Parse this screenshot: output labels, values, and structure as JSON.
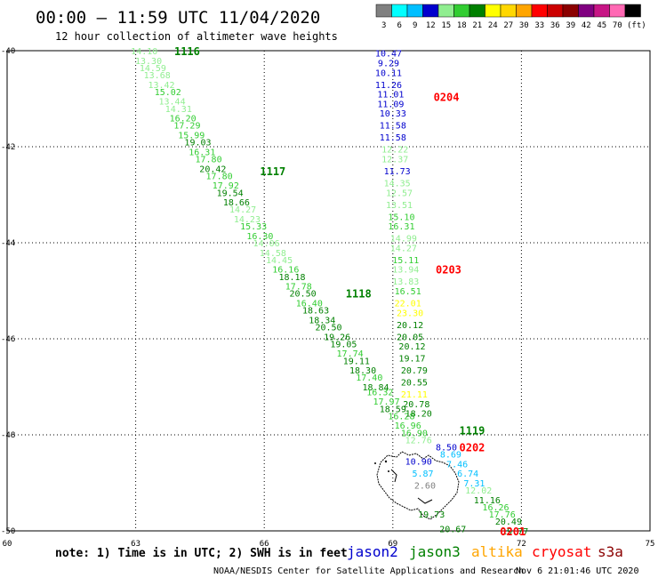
{
  "header": {
    "title": "00:00 – 11:59 UTC 11/04/2020",
    "subtitle": "12 hour collection of altimeter wave heights"
  },
  "legend": {
    "unit": "(ft)",
    "bins": [
      {
        "label": "3",
        "color": "#808080"
      },
      {
        "label": "6",
        "color": "#00ffff"
      },
      {
        "label": "9",
        "color": "#00bfff"
      },
      {
        "label": "12",
        "color": "#0000cd"
      },
      {
        "label": "15",
        "color": "#90ee90"
      },
      {
        "label": "18",
        "color": "#32cd32"
      },
      {
        "label": "21",
        "color": "#008000"
      },
      {
        "label": "24",
        "color": "#ffff00"
      },
      {
        "label": "27",
        "color": "#ffd700"
      },
      {
        "label": "30",
        "color": "#ffa500"
      },
      {
        "label": "33",
        "color": "#ff0000"
      },
      {
        "label": "36",
        "color": "#cc0000"
      },
      {
        "label": "39",
        "color": "#8b0000"
      },
      {
        "label": "42",
        "color": "#800080"
      },
      {
        "label": "45",
        "color": "#c71585"
      },
      {
        "label": "70",
        "color": "#ff69b4"
      },
      {
        "label": "",
        "color": "#000000"
      }
    ]
  },
  "footer": {
    "note": "note: 1) Time is in UTC; 2) SWH is in feet",
    "credit": "NOAA/NESDIS Center for Satellite Applications and Research",
    "timestamp": "Nov  6 21:01:46 UTC 2020",
    "satellites": [
      {
        "name": "jason2",
        "color": "#0000cd"
      },
      {
        "name": "jason3",
        "color": "#008000"
      },
      {
        "name": "altika",
        "color": "#ffa500"
      },
      {
        "name": "cryosat",
        "color": "#ff0000"
      },
      {
        "name": "s3a",
        "color": "#8b0000"
      }
    ]
  },
  "chart_data": {
    "type": "scatter",
    "xlabel": "",
    "ylabel": "",
    "xlim": [
      60,
      75
    ],
    "ylim": [
      -50,
      -40
    ],
    "x_ticks": [
      60,
      63,
      66,
      69,
      72,
      75
    ],
    "y_ticks": [
      -40,
      -42,
      -44,
      -46,
      -48,
      -50
    ],
    "grid": true,
    "tracks": [
      {
        "satellite": "jason3",
        "time_label": "1116",
        "time_label_at": [
          63.9,
          -40.0
        ],
        "points": [
          {
            "lon": 63.2,
            "lat": -40.0,
            "swh": "14.10",
            "color": "#90ee90"
          },
          {
            "lon": 63.3,
            "lat": -40.2,
            "swh": "13.30",
            "color": "#90ee90"
          },
          {
            "lon": 63.4,
            "lat": -40.35,
            "swh": "14.59",
            "color": "#90ee90"
          },
          {
            "lon": 63.5,
            "lat": -40.5,
            "swh": "13.68",
            "color": "#90ee90"
          },
          {
            "lon": 63.6,
            "lat": -40.7,
            "swh": "13.42",
            "color": "#90ee90"
          },
          {
            "lon": 63.75,
            "lat": -40.85,
            "swh": "15.02",
            "color": "#32cd32"
          },
          {
            "lon": 63.85,
            "lat": -41.05,
            "swh": "13.44",
            "color": "#90ee90"
          },
          {
            "lon": 64.0,
            "lat": -41.2,
            "swh": "14.31",
            "color": "#90ee90"
          },
          {
            "lon": 64.1,
            "lat": -41.4,
            "swh": "16.20",
            "color": "#32cd32"
          },
          {
            "lon": 64.2,
            "lat": -41.55,
            "swh": "17.29",
            "color": "#32cd32"
          },
          {
            "lon": 64.3,
            "lat": -41.75,
            "swh": "15.99",
            "color": "#32cd32"
          },
          {
            "lon": 64.45,
            "lat": -41.9,
            "swh": "19.03",
            "color": "#008000"
          },
          {
            "lon": 64.55,
            "lat": -42.1,
            "swh": "16.31",
            "color": "#32cd32"
          },
          {
            "lon": 64.7,
            "lat": -42.25,
            "swh": "17.80",
            "color": "#32cd32"
          },
          {
            "lon": 64.8,
            "lat": -42.45,
            "swh": "20.42",
            "color": "#008000"
          },
          {
            "lon": 64.95,
            "lat": -42.6,
            "swh": "17.80",
            "color": "#32cd32"
          },
          {
            "lon": 65.1,
            "lat": -42.8,
            "swh": "17.92",
            "color": "#32cd32"
          },
          {
            "lon": 65.2,
            "lat": -42.95,
            "swh": "19.54",
            "color": "#008000"
          },
          {
            "lon": 65.35,
            "lat": -43.15,
            "swh": "18.66",
            "color": "#008000"
          },
          {
            "lon": 65.5,
            "lat": -43.3,
            "swh": "14.27",
            "color": "#90ee90"
          },
          {
            "lon": 65.6,
            "lat": -43.5,
            "swh": "14.23",
            "color": "#90ee90"
          },
          {
            "lon": 65.75,
            "lat": -43.65,
            "swh": "15.33",
            "color": "#32cd32"
          },
          {
            "lon": 65.9,
            "lat": -43.85,
            "swh": "16.30",
            "color": "#32cd32"
          },
          {
            "lon": 66.05,
            "lat": -44.0,
            "swh": "14.06",
            "color": "#90ee90"
          },
          {
            "lon": 66.2,
            "lat": -44.2,
            "swh": "14.58",
            "color": "#90ee90"
          },
          {
            "lon": 66.35,
            "lat": -44.35,
            "swh": "14.45",
            "color": "#90ee90"
          },
          {
            "lon": 66.5,
            "lat": -44.55,
            "swh": "16.16",
            "color": "#32cd32"
          },
          {
            "lon": 66.65,
            "lat": -44.7,
            "swh": "18.18",
            "color": "#008000"
          },
          {
            "lon": 66.8,
            "lat": -44.9,
            "swh": "17.78",
            "color": "#32cd32"
          },
          {
            "lon": 66.9,
            "lat": -45.05,
            "swh": "20.50",
            "color": "#008000"
          },
          {
            "lon": 67.05,
            "lat": -45.25,
            "swh": "16.40",
            "color": "#32cd32"
          },
          {
            "lon": 67.2,
            "lat": -45.4,
            "swh": "18.63",
            "color": "#008000"
          },
          {
            "lon": 67.35,
            "lat": -45.6,
            "swh": "18.34",
            "color": "#008000"
          },
          {
            "lon": 67.5,
            "lat": -45.75,
            "swh": "20.50",
            "color": "#008000"
          },
          {
            "lon": 67.7,
            "lat": -45.95,
            "swh": "19.26",
            "color": "#008000"
          },
          {
            "lon": 67.85,
            "lat": -46.1,
            "swh": "19.05",
            "color": "#008000"
          },
          {
            "lon": 68.0,
            "lat": -46.3,
            "swh": "17.74",
            "color": "#32cd32"
          },
          {
            "lon": 68.15,
            "lat": -46.45,
            "swh": "19.11",
            "color": "#008000"
          },
          {
            "lon": 68.3,
            "lat": -46.65,
            "swh": "18.30",
            "color": "#008000"
          },
          {
            "lon": 68.45,
            "lat": -46.8,
            "swh": "17.40",
            "color": "#32cd32"
          },
          {
            "lon": 68.6,
            "lat": -47.0,
            "swh": "18.84",
            "color": "#008000"
          },
          {
            "lon": 68.7,
            "lat": -47.1,
            "swh": "16.32",
            "color": "#32cd32"
          },
          {
            "lon": 68.85,
            "lat": -47.3,
            "swh": "17.97",
            "color": "#32cd32"
          },
          {
            "lon": 69.0,
            "lat": -47.45,
            "swh": "18.59",
            "color": "#008000"
          },
          {
            "lon": 69.2,
            "lat": -47.6,
            "swh": "16.28",
            "color": "#32cd32"
          },
          {
            "lon": 69.35,
            "lat": -47.8,
            "swh": "16.96",
            "color": "#32cd32"
          },
          {
            "lon": 69.5,
            "lat": -47.95,
            "swh": "16.90",
            "color": "#32cd32"
          },
          {
            "lon": 69.6,
            "lat": -48.1,
            "swh": "12.76",
            "color": "#90ee90"
          }
        ]
      },
      {
        "satellite": "jason3",
        "time_label": "1117",
        "time_label_at": [
          65.9,
          -42.5
        ],
        "points": []
      },
      {
        "satellite": "jason3",
        "time_label": "1118",
        "time_label_at": [
          67.9,
          -45.05
        ],
        "points": []
      },
      {
        "satellite": "cryosat",
        "time_label": "0204",
        "time_label_at": [
          69.95,
          -40.95
        ],
        "points": [
          {
            "lon": 68.9,
            "lat": -40.05,
            "swh": "10.47",
            "color": "#0000cd"
          },
          {
            "lon": 68.9,
            "lat": -40.25,
            "swh": "9.29",
            "color": "#0000cd"
          },
          {
            "lon": 68.9,
            "lat": -40.45,
            "swh": "10.11",
            "color": "#0000cd"
          },
          {
            "lon": 68.9,
            "lat": -40.7,
            "swh": "11.26",
            "color": "#0000cd"
          },
          {
            "lon": 68.95,
            "lat": -40.9,
            "swh": "11.01",
            "color": "#0000cd"
          },
          {
            "lon": 68.95,
            "lat": -41.1,
            "swh": "11.09",
            "color": "#0000cd"
          },
          {
            "lon": 69.0,
            "lat": -41.3,
            "swh": "10.33",
            "color": "#0000cd"
          },
          {
            "lon": 69.0,
            "lat": -41.55,
            "swh": "11.58",
            "color": "#0000cd"
          },
          {
            "lon": 69.0,
            "lat": -41.8,
            "swh": "11.58",
            "color": "#0000cd"
          },
          {
            "lon": 69.05,
            "lat": -42.05,
            "swh": "12.22",
            "color": "#90ee90"
          },
          {
            "lon": 69.05,
            "lat": -42.25,
            "swh": "12.37",
            "color": "#90ee90"
          },
          {
            "lon": 69.1,
            "lat": -42.5,
            "swh": "11.73",
            "color": "#0000cd"
          },
          {
            "lon": 69.1,
            "lat": -42.75,
            "swh": "14.35",
            "color": "#90ee90"
          },
          {
            "lon": 69.15,
            "lat": -42.95,
            "swh": "12.57",
            "color": "#90ee90"
          },
          {
            "lon": 69.15,
            "lat": -43.2,
            "swh": "13.51",
            "color": "#90ee90"
          }
        ]
      },
      {
        "satellite": "cryosat",
        "time_label": "0203",
        "time_label_at": [
          70.0,
          -44.55
        ],
        "points": [
          {
            "lon": 69.2,
            "lat": -43.45,
            "swh": "15.10",
            "color": "#32cd32"
          },
          {
            "lon": 69.2,
            "lat": -43.65,
            "swh": "16.31",
            "color": "#32cd32"
          },
          {
            "lon": 69.25,
            "lat": -43.9,
            "swh": "14.99",
            "color": "#90ee90"
          },
          {
            "lon": 69.25,
            "lat": -44.1,
            "swh": "14.27",
            "color": "#90ee90"
          },
          {
            "lon": 69.3,
            "lat": -44.35,
            "swh": "15.11",
            "color": "#32cd32"
          },
          {
            "lon": 69.3,
            "lat": -44.55,
            "swh": "13.94",
            "color": "#90ee90"
          },
          {
            "lon": 69.3,
            "lat": -44.8,
            "swh": "13.83",
            "color": "#90ee90"
          },
          {
            "lon": 69.35,
            "lat": -45.0,
            "swh": "16.51",
            "color": "#32cd32"
          },
          {
            "lon": 69.35,
            "lat": -45.25,
            "swh": "22.01",
            "color": "#ffff00"
          },
          {
            "lon": 69.4,
            "lat": -45.45,
            "swh": "23.30",
            "color": "#ffff00"
          },
          {
            "lon": 69.4,
            "lat": -45.7,
            "swh": "20.12",
            "color": "#008000"
          },
          {
            "lon": 69.4,
            "lat": -45.95,
            "swh": "20.05",
            "color": "#008000"
          },
          {
            "lon": 69.45,
            "lat": -46.15,
            "swh": "20.12",
            "color": "#008000"
          },
          {
            "lon": 69.45,
            "lat": -46.4,
            "swh": "19.17",
            "color": "#008000"
          },
          {
            "lon": 69.5,
            "lat": -46.65,
            "swh": "20.79",
            "color": "#008000"
          },
          {
            "lon": 69.5,
            "lat": -46.9,
            "swh": "20.55",
            "color": "#008000"
          },
          {
            "lon": 69.5,
            "lat": -47.15,
            "swh": "21.11",
            "color": "#ffff00"
          },
          {
            "lon": 69.55,
            "lat": -47.35,
            "swh": "20.78",
            "color": "#008000"
          },
          {
            "lon": 69.6,
            "lat": -47.55,
            "swh": "18.20",
            "color": "#008000"
          }
        ]
      },
      {
        "satellite": "jason3",
        "time_label": "1119",
        "time_label_at": [
          70.55,
          -47.9
        ],
        "points": []
      },
      {
        "satellite": "cryosat",
        "time_label": "0202",
        "time_label_at": [
          70.55,
          -48.25
        ],
        "points": [
          {
            "lon": 70.25,
            "lat": -48.25,
            "swh": "8.50",
            "color": "#0000cd"
          },
          {
            "lon": 70.35,
            "lat": -48.4,
            "swh": "8.69",
            "color": "#00bfff"
          },
          {
            "lon": 69.6,
            "lat": -48.55,
            "swh": "10.90",
            "color": "#0000cd"
          },
          {
            "lon": 70.5,
            "lat": -48.6,
            "swh": "7.46",
            "color": "#00bfff"
          },
          {
            "lon": 69.7,
            "lat": -48.8,
            "swh": "5.87",
            "color": "#00bfff"
          },
          {
            "lon": 70.75,
            "lat": -48.8,
            "swh": "6.74",
            "color": "#00bfff"
          },
          {
            "lon": 69.75,
            "lat": -49.05,
            "swh": "2.60",
            "color": "#808080"
          },
          {
            "lon": 70.9,
            "lat": -49.0,
            "swh": "7.31",
            "color": "#00bfff"
          },
          {
            "lon": 71.0,
            "lat": -49.15,
            "swh": "12.02",
            "color": "#90ee90"
          },
          {
            "lon": 71.2,
            "lat": -49.35,
            "swh": "11.16",
            "color": "#008000"
          },
          {
            "lon": 71.4,
            "lat": -49.5,
            "swh": "16.26",
            "color": "#32cd32"
          },
          {
            "lon": 71.55,
            "lat": -49.65,
            "swh": "17.76",
            "color": "#32cd32"
          },
          {
            "lon": 71.7,
            "lat": -49.8,
            "swh": "20.49",
            "color": "#008000"
          },
          {
            "lon": 71.85,
            "lat": -50.0,
            "swh": "19.77",
            "color": "#008000"
          }
        ]
      },
      {
        "satellite": "cryosat",
        "time_label": "0201",
        "time_label_at": [
          71.5,
          -50.0
        ],
        "points": [
          {
            "lon": 69.9,
            "lat": -49.65,
            "swh": "19.73",
            "color": "#008000"
          },
          {
            "lon": 70.4,
            "lat": -49.95,
            "swh": "20.67",
            "color": "#008000"
          }
        ]
      }
    ]
  }
}
